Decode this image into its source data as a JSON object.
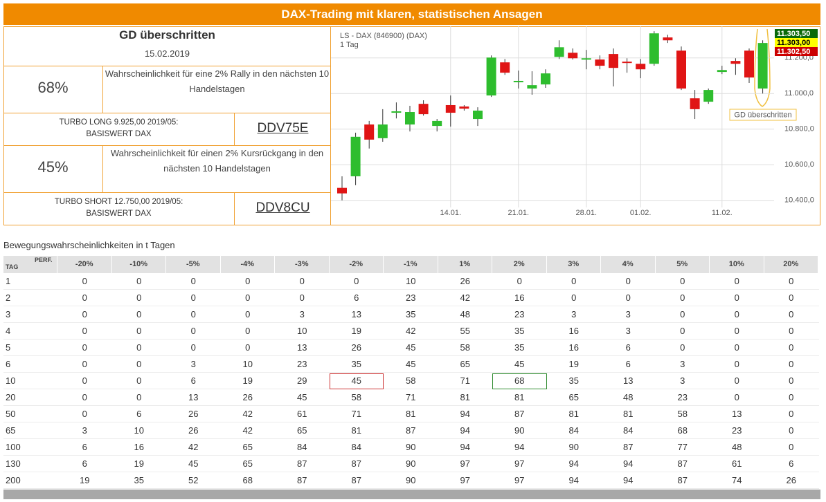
{
  "header": {
    "title": "DAX-Trading mit klaren, statistischen Ansagen"
  },
  "signal": {
    "title": "GD überschritten",
    "date": "15.02.2019"
  },
  "long": {
    "probability": "68%",
    "text": "Wahrscheinlichkeit für eine 2% Rally in den nächsten 10 Handelstagen",
    "product": [
      "TURBO LONG 9.925,00 2019/05:",
      "BASISWERT DAX"
    ],
    "code": "DDV75E"
  },
  "short": {
    "probability": "45%",
    "text": "Wahrscheinlichkeit für einen 2% Kursrückgang in den nächsten 10 Handelstagen",
    "product": [
      "TURBO SHORT 12.750,00 2019/05:",
      "BASISWERT DAX"
    ],
    "code": "DDV8CU"
  },
  "chart_data": {
    "type": "candlestick",
    "title": "LS - DAX (846900) (DAX)",
    "subtitle": "1 Tag",
    "categories": [
      null,
      null,
      null,
      null,
      null,
      null,
      null,
      null,
      "14.01.",
      null,
      null,
      null,
      null,
      "21.01.",
      null,
      null,
      null,
      null,
      "28.01.",
      null,
      null,
      null,
      "01.02.",
      null,
      null,
      null,
      null,
      null,
      "11.02.",
      null,
      null,
      null
    ],
    "open": [
      10470,
      10535,
      10826,
      10749,
      10892,
      10826,
      10942,
      10818,
      10935,
      10927,
      10857,
      10989,
      11175,
      11067,
      11028,
      11051,
      11206,
      11229,
      11194,
      11191,
      11222,
      11179,
      11167,
      11167,
      11315,
      11241,
      10973,
      10954,
      11121,
      11183,
      11241,
      11028
    ],
    "high": [
      10535,
      10780,
      10846,
      10912,
      10950,
      10931,
      10962,
      10857,
      10989,
      10935,
      10923,
      11214,
      11194,
      11129,
      11125,
      11136,
      11299,
      11253,
      11245,
      11214,
      11253,
      11198,
      11194,
      11350,
      11330,
      11264,
      11020,
      11028,
      11156,
      11198,
      11253,
      11299
    ],
    "low": [
      10400,
      10485,
      10691,
      10729,
      10860,
      10787,
      10876,
      10787,
      10814,
      10904,
      10818,
      10981,
      11105,
      11028,
      10993,
      11032,
      11194,
      11191,
      11136,
      11136,
      11040,
      11117,
      11086,
      11156,
      11284,
      11020,
      10857,
      10942,
      11109,
      11105,
      11059,
      11000
    ],
    "close": [
      10439,
      10757,
      10741,
      10826,
      10900,
      10896,
      10884,
      10846,
      10892,
      10915,
      10904,
      11202,
      11117,
      11071,
      11047,
      11113,
      11260,
      11198,
      11198,
      11156,
      11144,
      11175,
      11136,
      11338,
      11299,
      11028,
      10912,
      11020,
      11132,
      11167,
      11090,
      11284
    ],
    "up_color": "#2ebd2e",
    "down_color": "#e01515",
    "ylim": [
      10360,
      11370
    ],
    "yticks": [
      {
        "value": 10400,
        "label": "10.400,0"
      },
      {
        "value": 10600,
        "label": "10.600,0"
      },
      {
        "value": 10800,
        "label": "10.800,0"
      },
      {
        "value": 11000,
        "label": "11.000,0"
      },
      {
        "value": 11200,
        "label": "11.200,0"
      }
    ],
    "grid": true,
    "price_labels": [
      {
        "value": 11303.5,
        "label": "11.303,50",
        "color": "#0a6a0a"
      },
      {
        "value": 11303,
        "label": "11.303,00",
        "color": "#ffff00"
      },
      {
        "value": 11302.5,
        "label": "11.302,50",
        "color": "#cc0000"
      }
    ],
    "annotation": "GD überschritten"
  },
  "table": {
    "title": "Bewegungswahrscheinlichkeiten in t Tagen",
    "corner": [
      "PERF.",
      "TAG"
    ],
    "columns": [
      "-20%",
      "-10%",
      "-5%",
      "-4%",
      "-3%",
      "-2%",
      "-1%",
      "1%",
      "2%",
      "3%",
      "4%",
      "5%",
      "10%",
      "20%"
    ],
    "rows": [
      {
        "label": 1,
        "values": [
          0,
          0,
          0,
          0,
          0,
          0,
          10,
          26,
          0,
          0,
          0,
          0,
          0,
          0
        ]
      },
      {
        "label": 2,
        "values": [
          0,
          0,
          0,
          0,
          0,
          6,
          23,
          42,
          16,
          0,
          0,
          0,
          0,
          0
        ]
      },
      {
        "label": 3,
        "values": [
          0,
          0,
          0,
          0,
          3,
          13,
          35,
          48,
          23,
          3,
          3,
          0,
          0,
          0
        ]
      },
      {
        "label": 4,
        "values": [
          0,
          0,
          0,
          0,
          10,
          19,
          42,
          55,
          35,
          16,
          3,
          0,
          0,
          0
        ]
      },
      {
        "label": 5,
        "values": [
          0,
          0,
          0,
          0,
          13,
          26,
          45,
          58,
          35,
          16,
          6,
          0,
          0,
          0
        ]
      },
      {
        "label": 6,
        "values": [
          0,
          0,
          3,
          10,
          23,
          35,
          45,
          65,
          45,
          19,
          6,
          3,
          0,
          0
        ]
      },
      {
        "label": 10,
        "values": [
          0,
          0,
          6,
          19,
          29,
          45,
          58,
          71,
          68,
          35,
          13,
          3,
          0,
          0
        ]
      },
      {
        "label": 20,
        "values": [
          0,
          0,
          13,
          26,
          45,
          58,
          71,
          81,
          81,
          65,
          48,
          23,
          0,
          0
        ]
      },
      {
        "label": 50,
        "values": [
          0,
          6,
          26,
          42,
          61,
          71,
          81,
          94,
          87,
          81,
          81,
          58,
          13,
          0
        ]
      },
      {
        "label": 65,
        "values": [
          3,
          10,
          26,
          42,
          65,
          81,
          87,
          94,
          90,
          84,
          84,
          68,
          23,
          0
        ]
      },
      {
        "label": 100,
        "values": [
          6,
          16,
          42,
          65,
          84,
          84,
          90,
          94,
          94,
          90,
          87,
          77,
          48,
          0
        ]
      },
      {
        "label": 130,
        "values": [
          6,
          19,
          45,
          65,
          87,
          87,
          90,
          97,
          97,
          94,
          94,
          87,
          61,
          6
        ]
      },
      {
        "label": 200,
        "values": [
          19,
          35,
          52,
          68,
          87,
          87,
          90,
          97,
          97,
          94,
          94,
          87,
          74,
          26
        ]
      }
    ],
    "highlights": [
      {
        "row": 6,
        "column": 5,
        "color": "#cc3333"
      },
      {
        "row": 6,
        "column": 8,
        "color": "#2e8a2e"
      }
    ]
  }
}
